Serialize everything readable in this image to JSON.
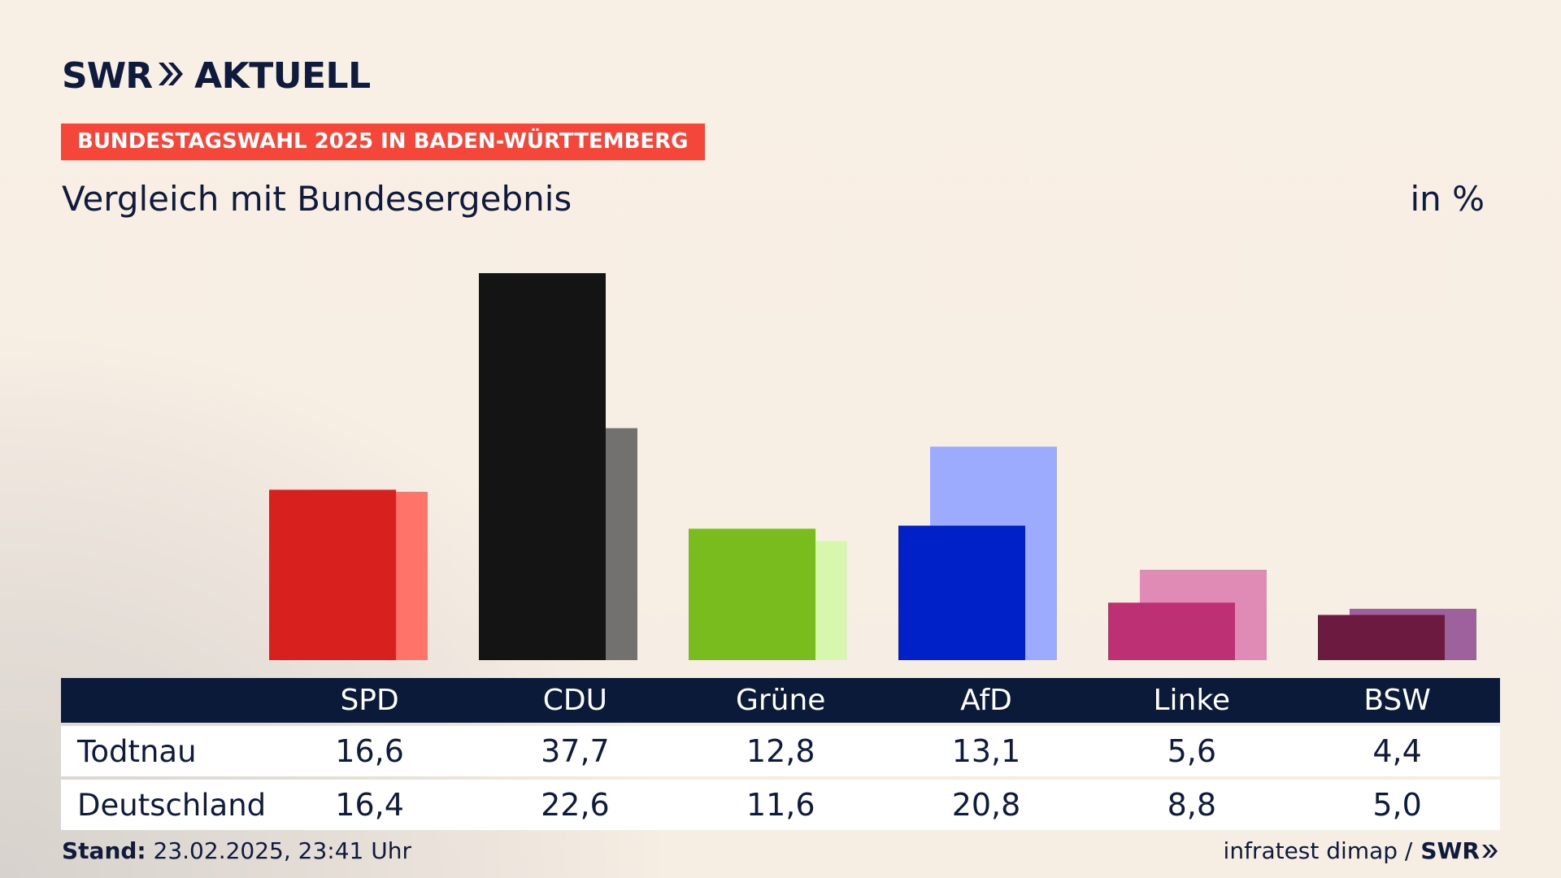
{
  "brand": {
    "swr": "SWR",
    "aktuell": "AKTUELL"
  },
  "header": {
    "badge": "BUNDESTAGSWAHL 2025 IN BADEN-WÜRTTEMBERG",
    "subtitle": "Vergleich mit Bundesergebnis",
    "unit": "in %"
  },
  "chart_data": {
    "type": "bar",
    "title": "Vergleich mit Bundesergebnis",
    "ylabel": "in %",
    "categories": [
      "SPD",
      "CDU",
      "Grüne",
      "AfD",
      "Linke",
      "BSW"
    ],
    "series": [
      {
        "name": "Todtnau",
        "values": [
          16.6,
          37.7,
          12.8,
          13.1,
          5.6,
          4.4
        ],
        "colors": [
          "#d8211f",
          "#141414",
          "#79bc1d",
          "#0021c8",
          "#bd3174",
          "#6c1a40"
        ]
      },
      {
        "name": "Deutschland",
        "values": [
          16.4,
          22.6,
          11.6,
          20.8,
          8.8,
          5.0
        ],
        "colors": [
          "#ff7368",
          "#737170",
          "#d7f7af",
          "#9dabfe",
          "#e08ab6",
          "#9d619d"
        ]
      }
    ],
    "ylim": [
      0,
      37.7
    ]
  },
  "table": {
    "columns": [
      "SPD",
      "CDU",
      "Grüne",
      "AfD",
      "Linke",
      "BSW"
    ],
    "rows": [
      {
        "label": "Todtnau",
        "values": [
          "16,6",
          "37,7",
          "12,8",
          "13,1",
          "5,6",
          "4,4"
        ]
      },
      {
        "label": "Deutschland",
        "values": [
          "16,4",
          "22,6",
          "11,6",
          "20,8",
          "8,8",
          "5,0"
        ]
      }
    ]
  },
  "footer": {
    "stand_label": "Stand:",
    "stand_value": "23.02.2025, 23:41 Uhr",
    "source": "infratest dimap /",
    "source_brand": "SWR"
  }
}
